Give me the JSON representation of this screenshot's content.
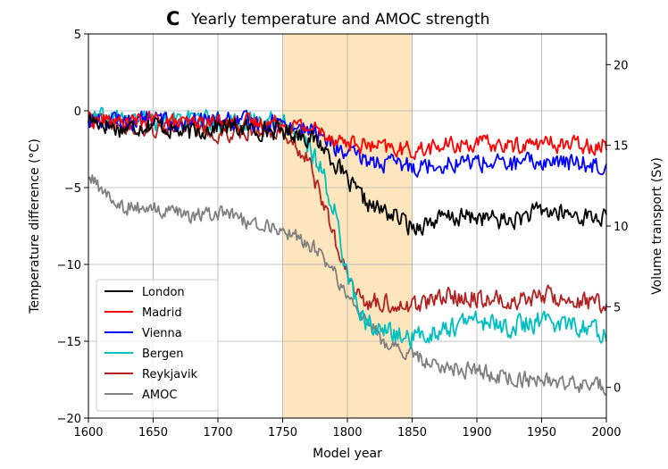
{
  "figure": {
    "panel_letter": "C",
    "title": "Yearly temperature and AMOC strength"
  },
  "chart_data": {
    "type": "line",
    "title": "Yearly temperature and AMOC strength",
    "xlabel": "Model year",
    "ylabel": "Temperature difference (°C)",
    "ylabel_right": "Volume transport (Sv)",
    "xlim": [
      1600,
      2000
    ],
    "ylim": [
      -20,
      5
    ],
    "ylim_right": [
      -1.9,
      21.9
    ],
    "xticks": [
      "1600",
      "1650",
      "1700",
      "1750",
      "1800",
      "1850",
      "1900",
      "1950",
      "2000"
    ],
    "yticks": [
      "5",
      "0",
      "-5",
      "-10",
      "-15",
      "-20"
    ],
    "yticks_right": [
      "0",
      "5",
      "10",
      "15",
      "20"
    ],
    "grid": true,
    "legend_position": "lower-left",
    "shaded_regions": [
      {
        "x0": 1750,
        "x1": 1850,
        "color": "#fde5bd"
      },
      {
        "x0": 1800,
        "x1": 1850,
        "color": "#fde5bd"
      }
    ],
    "series": [
      {
        "name": "London",
        "color": "#000000",
        "axis": "left",
        "x": [
          1600,
          1625,
          1650,
          1675,
          1700,
          1725,
          1750,
          1765,
          1780,
          1790,
          1800,
          1810,
          1820,
          1830,
          1840,
          1850,
          1860,
          1875,
          1900,
          1925,
          1950,
          1975,
          2000
        ],
        "y": [
          -0.5,
          -1.2,
          -0.8,
          -1.5,
          -1.0,
          -1.2,
          -1.3,
          -1.5,
          -2.2,
          -3.3,
          -4.6,
          -5.6,
          -6.3,
          -6.6,
          -7.0,
          -7.6,
          -7.3,
          -7.0,
          -6.9,
          -7.2,
          -6.5,
          -6.8,
          -7.0
        ]
      },
      {
        "name": "Madrid",
        "color": "#ff0000",
        "axis": "left",
        "x": [
          1600,
          1625,
          1650,
          1675,
          1700,
          1725,
          1750,
          1775,
          1800,
          1825,
          1850,
          1875,
          1900,
          1925,
          1950,
          1975,
          2000
        ],
        "y": [
          -0.5,
          -0.8,
          -0.6,
          -0.9,
          -0.7,
          -0.8,
          -0.8,
          -1.2,
          -2.1,
          -2.4,
          -2.6,
          -2.3,
          -2.1,
          -2.3,
          -2.1,
          -2.2,
          -2.2
        ]
      },
      {
        "name": "Vienna",
        "color": "#0000ff",
        "axis": "left",
        "x": [
          1600,
          1625,
          1650,
          1675,
          1700,
          1725,
          1750,
          1775,
          1800,
          1825,
          1850,
          1875,
          1900,
          1925,
          1950,
          1975,
          2000
        ],
        "y": [
          -0.6,
          -0.7,
          -0.5,
          -0.9,
          -0.6,
          -0.8,
          -0.8,
          -1.4,
          -2.9,
          -3.4,
          -3.6,
          -3.4,
          -3.3,
          -3.5,
          -3.3,
          -3.4,
          -3.5
        ]
      },
      {
        "name": "Bergen",
        "color": "#00bfbf",
        "axis": "left",
        "x": [
          1600,
          1625,
          1650,
          1675,
          1700,
          1725,
          1750,
          1760,
          1770,
          1780,
          1790,
          1800,
          1810,
          1825,
          1850,
          1875,
          1900,
          1925,
          1950,
          1975,
          2000
        ],
        "y": [
          -0.6,
          -0.5,
          -0.7,
          -0.6,
          -0.8,
          -0.7,
          -0.7,
          -1.3,
          -2.4,
          -3.9,
          -6.5,
          -10.5,
          -13.4,
          -14.3,
          -14.8,
          -14.2,
          -13.6,
          -14.1,
          -13.7,
          -13.9,
          -14.5
        ]
      },
      {
        "name": "Reykjavik",
        "color": "#b22222",
        "axis": "left",
        "x": [
          1600,
          1625,
          1650,
          1675,
          1700,
          1725,
          1750,
          1760,
          1770,
          1780,
          1790,
          1800,
          1810,
          1825,
          1850,
          1875,
          1900,
          1925,
          1950,
          1975,
          2000
        ],
        "y": [
          -0.5,
          -0.9,
          -1.2,
          -0.9,
          -1.4,
          -1.2,
          -1.3,
          -2.0,
          -3.4,
          -5.6,
          -8.4,
          -10.9,
          -12.3,
          -12.5,
          -12.7,
          -12.1,
          -12.1,
          -12.4,
          -12.0,
          -12.3,
          -12.6
        ]
      },
      {
        "name": "AMOC",
        "color": "#808080",
        "axis": "right",
        "x": [
          1600,
          1610,
          1625,
          1650,
          1675,
          1700,
          1725,
          1750,
          1775,
          1790,
          1800,
          1810,
          1825,
          1840,
          1850,
          1875,
          1900,
          1925,
          1950,
          1975,
          2000
        ],
        "y": [
          13.0,
          12.3,
          11.2,
          11.0,
          10.6,
          10.8,
          10.2,
          9.8,
          8.6,
          7.1,
          5.7,
          4.5,
          3.1,
          2.3,
          1.9,
          1.3,
          1.0,
          0.6,
          0.4,
          0.2,
          0.1
        ]
      }
    ]
  }
}
